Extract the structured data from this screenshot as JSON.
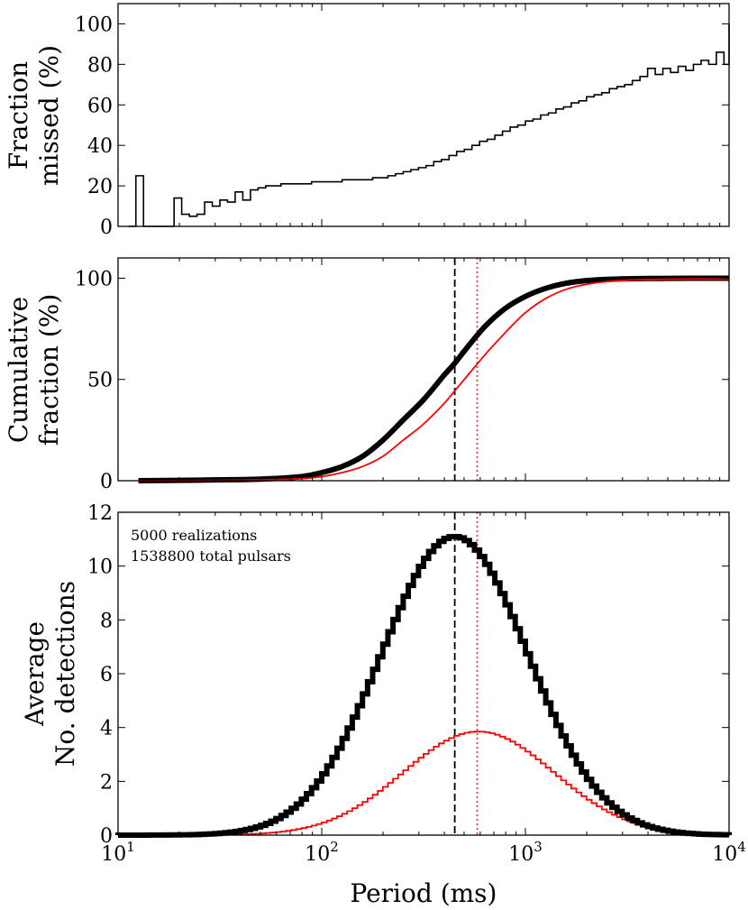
{
  "chart_data": [
    {
      "type": "line",
      "drawstyle": "steps",
      "ylabel_lines": [
        "Fraction",
        "missed (%)"
      ],
      "ylim": [
        0,
        110
      ],
      "yticks": [
        0,
        20,
        40,
        60,
        80,
        100
      ],
      "ytick_labels": [
        "0",
        "20",
        "40",
        "60",
        "80",
        "100"
      ],
      "xscale": "log",
      "xlim": [
        10,
        10000
      ],
      "series": [
        {
          "name": "fraction-missed",
          "color": "#000000",
          "log10_x_edges": [
            1.05,
            1.0875,
            1.125,
            1.1625,
            1.2,
            1.2375,
            1.275,
            1.3125,
            1.35,
            1.3875,
            1.425,
            1.4625,
            1.5,
            1.5375,
            1.575,
            1.6125,
            1.65,
            1.6875,
            1.725,
            1.7625,
            1.8,
            1.8375,
            1.875,
            1.9125,
            1.95,
            1.9875,
            2.025,
            2.0625,
            2.1,
            2.1375,
            2.175,
            2.2125,
            2.25,
            2.2875,
            2.325,
            2.3625,
            2.4,
            2.4375,
            2.475,
            2.5125,
            2.55,
            2.5875,
            2.625,
            2.6625,
            2.7,
            2.7375,
            2.775,
            2.8125,
            2.85,
            2.8875,
            2.925,
            2.9625,
            3.0,
            3.0375,
            3.075,
            3.1125,
            3.15,
            3.1875,
            3.225,
            3.2625,
            3.3,
            3.3375,
            3.375,
            3.4125,
            3.45,
            3.4875,
            3.525,
            3.5625,
            3.6,
            3.6375,
            3.675,
            3.7125,
            3.75,
            3.7875,
            3.825,
            3.8625,
            3.9,
            3.9375,
            3.975,
            4.0
          ],
          "values": [
            0,
            25,
            0,
            0,
            0,
            0,
            14,
            6,
            5,
            6,
            12,
            10,
            13,
            12,
            17,
            13,
            18,
            19,
            20,
            20,
            21,
            21,
            21,
            21,
            22,
            22,
            22,
            22,
            23,
            23,
            23,
            23,
            24,
            24,
            25,
            26,
            27,
            28,
            29,
            30,
            32,
            33,
            35,
            37,
            38,
            40,
            42,
            43,
            45,
            47,
            49,
            50,
            52,
            53,
            55,
            56,
            58,
            59,
            61,
            62,
            64,
            65,
            66,
            68,
            69,
            70,
            72,
            74,
            78,
            75,
            78,
            76,
            79,
            77,
            80,
            82,
            80,
            86,
            80,
            100
          ]
        }
      ]
    },
    {
      "type": "line",
      "ylabel_lines": [
        "Cumulative",
        "fraction (%)"
      ],
      "ylim": [
        0,
        110
      ],
      "yticks": [
        0,
        50,
        100
      ],
      "ytick_labels": [
        "0",
        "50",
        "100"
      ],
      "xscale": "log",
      "xlim": [
        10,
        10000
      ],
      "vlines": [
        {
          "x": 450,
          "color": "#000000",
          "style": "dashed"
        },
        {
          "x": 580,
          "color": "#ff3333",
          "style": "dotted"
        }
      ],
      "series": [
        {
          "name": "all-detections-cumulative",
          "color": "#000000",
          "log10_x": [
            1.1,
            1.4,
            1.7,
            1.9,
            2.0,
            2.1,
            2.2,
            2.3,
            2.4,
            2.5,
            2.6,
            2.653,
            2.7,
            2.8,
            2.9,
            3.0,
            3.1,
            3.2,
            3.3,
            3.4,
            3.5,
            3.6,
            3.7,
            3.8,
            3.9,
            4.0
          ],
          "values": [
            0,
            0.3,
            0.8,
            2,
            4,
            7,
            12,
            20,
            30,
            40,
            52,
            58,
            64,
            76,
            85,
            91,
            95,
            97.5,
            98.8,
            99.4,
            99.7,
            99.85,
            99.9,
            100,
            100,
            100
          ]
        },
        {
          "name": "subset-cumulative",
          "color": "#ff0000",
          "log10_x": [
            1.1,
            1.4,
            1.7,
            1.9,
            2.0,
            2.1,
            2.2,
            2.3,
            2.4,
            2.5,
            2.6,
            2.65,
            2.7,
            2.8,
            2.9,
            3.0,
            3.1,
            3.2,
            3.3,
            3.4,
            3.5,
            3.6,
            3.7,
            3.8,
            3.9,
            4.0
          ],
          "values": [
            0,
            0.1,
            0.4,
            1,
            2,
            4,
            7,
            12,
            20,
            28,
            38,
            44,
            50,
            62,
            73,
            83,
            90,
            94.5,
            97,
            98.3,
            99,
            99.3,
            99.5,
            99.6,
            99.6,
            99.6
          ]
        }
      ]
    },
    {
      "type": "line",
      "drawstyle": "steps",
      "ylabel_lines": [
        "Average",
        "No. detections"
      ],
      "xlabel": "Period (ms)",
      "ylim": [
        0,
        12
      ],
      "yticks": [
        0,
        2,
        4,
        6,
        8,
        10,
        12
      ],
      "ytick_labels": [
        "0",
        "2",
        "4",
        "6",
        "8",
        "10",
        "12"
      ],
      "xscale": "log",
      "xlim": [
        10,
        10000
      ],
      "xticks": [
        10,
        100,
        1000,
        10000
      ],
      "xtick_labels": [
        {
          "base": "10",
          "exp": "1"
        },
        {
          "base": "10",
          "exp": "2"
        },
        {
          "base": "10",
          "exp": "3"
        },
        {
          "base": "10",
          "exp": "4"
        }
      ],
      "annotations": [
        "5000 realizations",
        "1538800 total pulsars"
      ],
      "vlines": [
        {
          "x": 450,
          "color": "#000000",
          "style": "dashed"
        },
        {
          "x": 580,
          "color": "#ff3333",
          "style": "dotted"
        }
      ],
      "gaussian_bins": {
        "log10_x_start": 1.0,
        "log10_x_end": 4.0,
        "bins": 120
      },
      "series": [
        {
          "name": "all-detections",
          "color": "#000000",
          "peak": 11.1,
          "log10_center": 2.653,
          "log10_sigma": 0.36
        },
        {
          "name": "subset-detections",
          "color": "#ff0000",
          "peak": 3.85,
          "log10_center": 2.77,
          "log10_sigma": 0.37
        }
      ]
    }
  ]
}
